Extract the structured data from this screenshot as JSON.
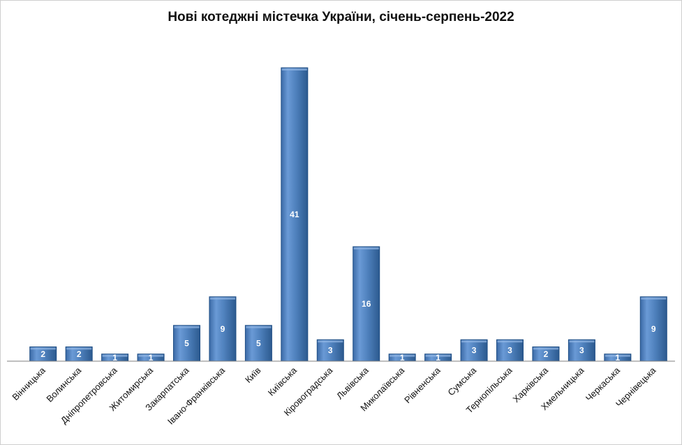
{
  "chart_data": {
    "type": "bar",
    "title": "Нові котеджні містечка України, січень-серпень-2022",
    "xlabel": "",
    "ylabel": "",
    "categories": [
      "Вінницька",
      "Волинська",
      "Дніпропетровська",
      "Житомирська",
      "Закарпатська",
      "Івано-Франківська",
      "Київ",
      "Київська",
      "Кіровоградська",
      "Львівська",
      "Миколаївська",
      "Рівненська",
      "Сумська",
      "Тернопільська",
      "Харківська",
      "Хмельницька",
      "Черкаська",
      "Чернівецька"
    ],
    "values": [
      2,
      2,
      1,
      1,
      5,
      9,
      5,
      41,
      3,
      16,
      1,
      1,
      3,
      3,
      2,
      3,
      1,
      9
    ],
    "ylim": [
      0,
      41
    ],
    "grid": false,
    "legend": "none",
    "data_labels": true,
    "colors": {
      "bar": "#4f81bd",
      "bar_dark": "#2c5a8f",
      "bar_light": "#8fb4e3",
      "axis": "#7f7f7f"
    }
  }
}
